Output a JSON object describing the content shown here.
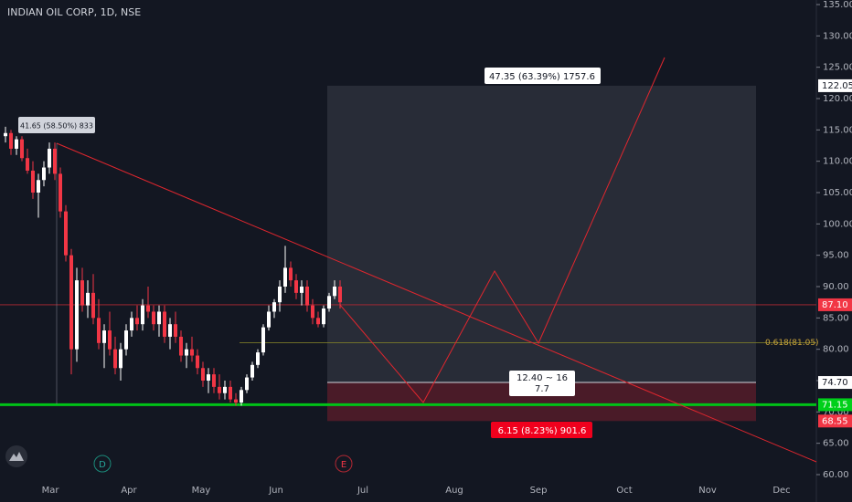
{
  "chart_data": {
    "type": "candlestick",
    "title": "INDIAN OIL CORP, 1D, NSE",
    "ohlc": [
      [
        114,
        115.5,
        113,
        114.5
      ],
      [
        114.5,
        115,
        111,
        112
      ],
      [
        112,
        114,
        111,
        113.5
      ],
      [
        113.5,
        114,
        110,
        110.5
      ],
      [
        110.5,
        112,
        108,
        108.5
      ],
      [
        108.5,
        110,
        104,
        105
      ],
      [
        105,
        108,
        101,
        107
      ],
      [
        107,
        110,
        106,
        109
      ],
      [
        109,
        113,
        108,
        112
      ],
      [
        112,
        113,
        107,
        108
      ],
      [
        108,
        109,
        101,
        102
      ],
      [
        102,
        103,
        94,
        95
      ],
      [
        95,
        96,
        76,
        80
      ],
      [
        80,
        93,
        78,
        91
      ],
      [
        91,
        93,
        86,
        87
      ],
      [
        87,
        91,
        85,
        89
      ],
      [
        89,
        92,
        84,
        85
      ],
      [
        85,
        88,
        80,
        81
      ],
      [
        81,
        84,
        77,
        83
      ],
      [
        83,
        86,
        79,
        80
      ],
      [
        80,
        82,
        76,
        77
      ],
      [
        77,
        81,
        75,
        80
      ],
      [
        80,
        84,
        79,
        83
      ],
      [
        83,
        86,
        82,
        85
      ],
      [
        85,
        87,
        83,
        84
      ],
      [
        84,
        88,
        83,
        87
      ],
      [
        87,
        90,
        85,
        86
      ],
      [
        86,
        87,
        83,
        84
      ],
      [
        84,
        87,
        82,
        86
      ],
      [
        86,
        87,
        81,
        82
      ],
      [
        82,
        85,
        80,
        84
      ],
      [
        84,
        86,
        81,
        82
      ],
      [
        82,
        83,
        78,
        79
      ],
      [
        79,
        81,
        77,
        80
      ],
      [
        80,
        82,
        78,
        79
      ],
      [
        79,
        80,
        76,
        77
      ],
      [
        77,
        78,
        74,
        75
      ],
      [
        75,
        77,
        73,
        76
      ],
      [
        76,
        77,
        73,
        74
      ],
      [
        74,
        76,
        72,
        73
      ],
      [
        73,
        75,
        72,
        74
      ],
      [
        74,
        75,
        71.5,
        72
      ],
      [
        72,
        73,
        71,
        71.5
      ],
      [
        71.5,
        74,
        71,
        73.5
      ],
      [
        73.5,
        76,
        73,
        75.5
      ],
      [
        75.5,
        78,
        75,
        77.5
      ],
      [
        77.5,
        80,
        77,
        79.5
      ],
      [
        79.5,
        84,
        79,
        83.5
      ],
      [
        83.5,
        87,
        83,
        86
      ],
      [
        86,
        88,
        85,
        87.5
      ],
      [
        87.5,
        91,
        86,
        90
      ],
      [
        90,
        96.5,
        89,
        93
      ],
      [
        93,
        94,
        90,
        91
      ],
      [
        91,
        92,
        88,
        89
      ],
      [
        89,
        91,
        87,
        90
      ],
      [
        90,
        91,
        86,
        87
      ],
      [
        87,
        88,
        84,
        85
      ],
      [
        85,
        86,
        83.5,
        84
      ],
      [
        84,
        87,
        83.5,
        86.5
      ],
      [
        86.5,
        89,
        86,
        88.5
      ],
      [
        88.5,
        91,
        88,
        90
      ],
      [
        90,
        91,
        86.5,
        87.5
      ]
    ],
    "up_color": "#ffffff",
    "down_color": "#f23645",
    "x_labels": [
      "Mar",
      "Apr",
      "May",
      "Jun",
      "Jul",
      "Aug",
      "Sep",
      "Oct",
      "Nov",
      "Dec"
    ],
    "ylim": [
      60,
      135
    ],
    "yticks": [
      {
        "value": 60,
        "label": "60.00"
      },
      {
        "value": 65,
        "label": "65.00"
      },
      {
        "value": 70,
        "label": "70.00"
      },
      {
        "value": 75,
        "label": "75.00"
      },
      {
        "value": 80,
        "label": "80.00"
      },
      {
        "value": 85,
        "label": "85.00"
      },
      {
        "value": 90,
        "label": "90.00"
      },
      {
        "value": 95,
        "label": "95.00"
      },
      {
        "value": 100,
        "label": "100.00"
      },
      {
        "value": 105,
        "label": "105.00"
      },
      {
        "value": 110,
        "label": "110.00"
      },
      {
        "value": 115,
        "label": "115.00"
      },
      {
        "value": 120,
        "label": "120.00"
      },
      {
        "value": 125,
        "label": "125.00"
      },
      {
        "value": 130,
        "label": "130.00"
      },
      {
        "value": 135,
        "label": "135.00"
      }
    ],
    "price_tags": [
      {
        "value": 122.05,
        "label": "122.05",
        "color": "#ffffff"
      },
      {
        "value": 87.1,
        "label": "87.10",
        "color": "#f23645"
      },
      {
        "value": 74.7,
        "label": "74.70",
        "color": "#ffffff"
      },
      {
        "value": 71.15,
        "label": "71.15",
        "color": "#00d01a"
      },
      {
        "value": 68.55,
        "label": "68.55",
        "color": "#f23645"
      }
    ],
    "fib": {
      "value": 81.05,
      "label": "0.618(81.05)"
    },
    "annotations": [
      "47.35 (63.39%) 1757.6",
      "41.65 (58.50%) 833",
      "12.40 ~ 16",
      "7.7",
      "6.15 (8.23%) 901.6"
    ],
    "markers": [
      "D",
      "E"
    ]
  }
}
